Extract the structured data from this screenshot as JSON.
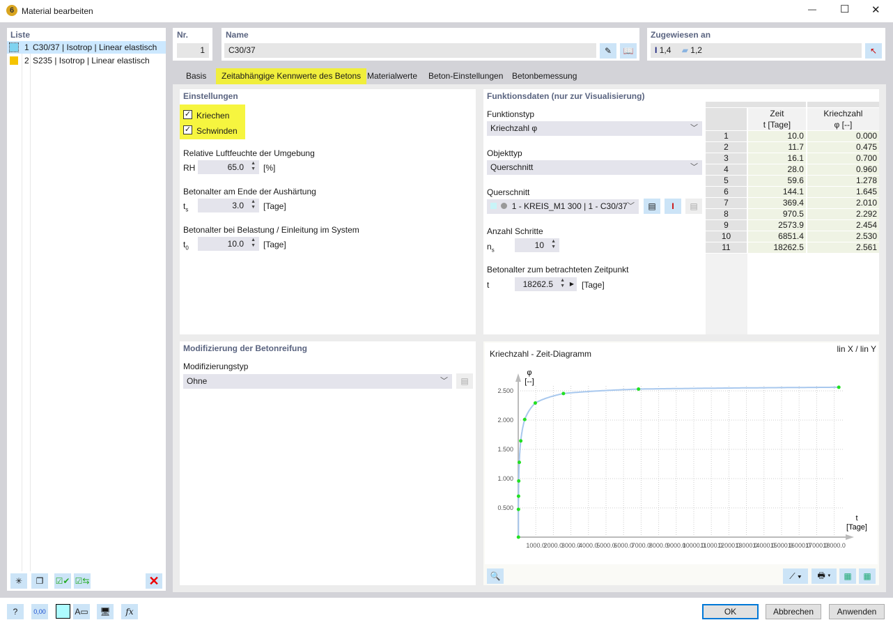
{
  "window": {
    "title": "Material bearbeiten",
    "minimize": "—",
    "maximize": "☐",
    "close": "✕"
  },
  "list": {
    "header": "Liste",
    "items": [
      {
        "num": "1",
        "label": "C30/37 | Isotrop | Linear elastisch",
        "color": "#7fd3f0",
        "selected": true
      },
      {
        "num": "2",
        "label": "S235 | Isotrop | Linear elastisch",
        "color": "#f5c400",
        "selected": false
      }
    ]
  },
  "nr": {
    "label": "Nr.",
    "value": "1"
  },
  "name": {
    "label": "Name",
    "value": "C30/37"
  },
  "assigned": {
    "label": "Zugewiesen an",
    "members": "1,4",
    "surfaces": "1,2"
  },
  "tabs": [
    {
      "label": "Basis"
    },
    {
      "label": "Zeitabhängige Kennwerte des Betons",
      "active": true
    },
    {
      "label": "Materialwerte"
    },
    {
      "label": "Beton-Einstellungen"
    },
    {
      "label": "Betonbemessung"
    }
  ],
  "settings": {
    "header": "Einstellungen",
    "creep": {
      "label": "Kriechen",
      "checked": true
    },
    "shrinkage": {
      "label": "Schwinden",
      "checked": true
    },
    "rh": {
      "title": "Relative Luftfeuchte der Umgebung",
      "sym": "RH",
      "value": "65.0",
      "unit": "[%]"
    },
    "ts": {
      "title": "Betonalter am Ende der Aushärtung",
      "sym": "t",
      "sub": "s",
      "value": "3.0",
      "unit": "[Tage]"
    },
    "t0": {
      "title": "Betonalter bei Belastung / Einleitung im System",
      "sym": "t",
      "sub": "0",
      "value": "10.0",
      "unit": "[Tage]"
    }
  },
  "func": {
    "header": "Funktionsdaten (nur zur Visualisierung)",
    "type_label": "Funktionstyp",
    "type_value": "Kriechzahl φ",
    "obj_label": "Objekttyp",
    "obj_value": "Querschnitt",
    "cs_label": "Querschnitt",
    "cs_value": "1 - KREIS_M1 300 | 1 - C30/37",
    "steps_label": "Anzahl Schritte",
    "steps_sym": "n",
    "steps_sub": "s",
    "steps_value": "10",
    "age_label": "Betonalter zum betrachteten Zeitpunkt",
    "age_sym": "t",
    "age_value": "18262.5",
    "age_unit": "[Tage]"
  },
  "table": {
    "col1": "Zeit",
    "col1u": "t [Tage]",
    "col2": "Kriechzahl",
    "col2u": "φ [--]",
    "rows": [
      [
        "1",
        "10.0",
        "0.000"
      ],
      [
        "2",
        "11.7",
        "0.475"
      ],
      [
        "3",
        "16.1",
        "0.700"
      ],
      [
        "4",
        "28.0",
        "0.960"
      ],
      [
        "5",
        "59.6",
        "1.278"
      ],
      [
        "6",
        "144.1",
        "1.645"
      ],
      [
        "7",
        "369.4",
        "2.010"
      ],
      [
        "8",
        "970.5",
        "2.292"
      ],
      [
        "9",
        "2573.9",
        "2.454"
      ],
      [
        "10",
        "6851.4",
        "2.530"
      ],
      [
        "11",
        "18262.5",
        "2.561"
      ]
    ]
  },
  "modif": {
    "header": "Modifizierung der Betonreifung",
    "type_label": "Modifizierungstyp",
    "type_value": "Ohne"
  },
  "chart_data": {
    "type": "line",
    "title": "Kriechzahl - Zeit-Diagramm",
    "scale": "lin X / lin Y",
    "ylabel": "φ",
    "yunit": "[--]",
    "xlabel": "t",
    "xunit": "[Tage]",
    "x": [
      10.0,
      11.7,
      16.1,
      28.0,
      59.6,
      144.1,
      369.4,
      970.5,
      2573.9,
      6851.4,
      18262.5
    ],
    "y": [
      0.0,
      0.475,
      0.7,
      0.96,
      1.278,
      1.645,
      2.01,
      2.292,
      2.454,
      2.53,
      2.561
    ],
    "xlim": [
      0,
      18500
    ],
    "ylim": [
      0,
      2.75
    ],
    "xticks": [
      "1000.0",
      "2000.0",
      "3000.0",
      "4000.0",
      "5000.0",
      "6000.0",
      "7000.0",
      "8000.0",
      "9000.0",
      "10000.0",
      "11000.0",
      "12000.0",
      "13000.0",
      "14000.0",
      "15000.0",
      "16000.0",
      "17000.0",
      "18000.0"
    ],
    "yticks": [
      "0.500",
      "1.000",
      "1.500",
      "2.000",
      "2.500"
    ],
    "grid": true,
    "line_color": "#a8c8ee",
    "point_color": "#22e022"
  },
  "footer": {
    "ok": "OK",
    "cancel": "Abbrechen",
    "apply": "Anwenden",
    "units_icon_text": "0,00"
  }
}
